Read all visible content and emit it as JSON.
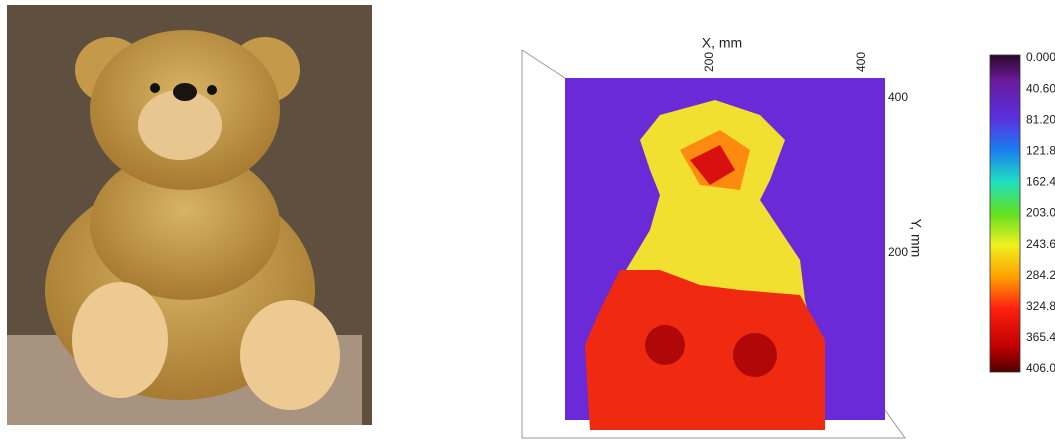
{
  "map": {
    "x_axis": {
      "label": "X, mm",
      "ticks": [
        "200",
        "400"
      ]
    },
    "y_axis": {
      "label": "Y, mm",
      "ticks": [
        "400",
        "200"
      ]
    },
    "colorbar": {
      "labels": [
        "0.000",
        "40.60",
        "81.20",
        "121.8",
        "162.4",
        "203.0",
        "243.6",
        "284.2",
        "324.8",
        "365.4",
        "406.0"
      ]
    }
  }
}
